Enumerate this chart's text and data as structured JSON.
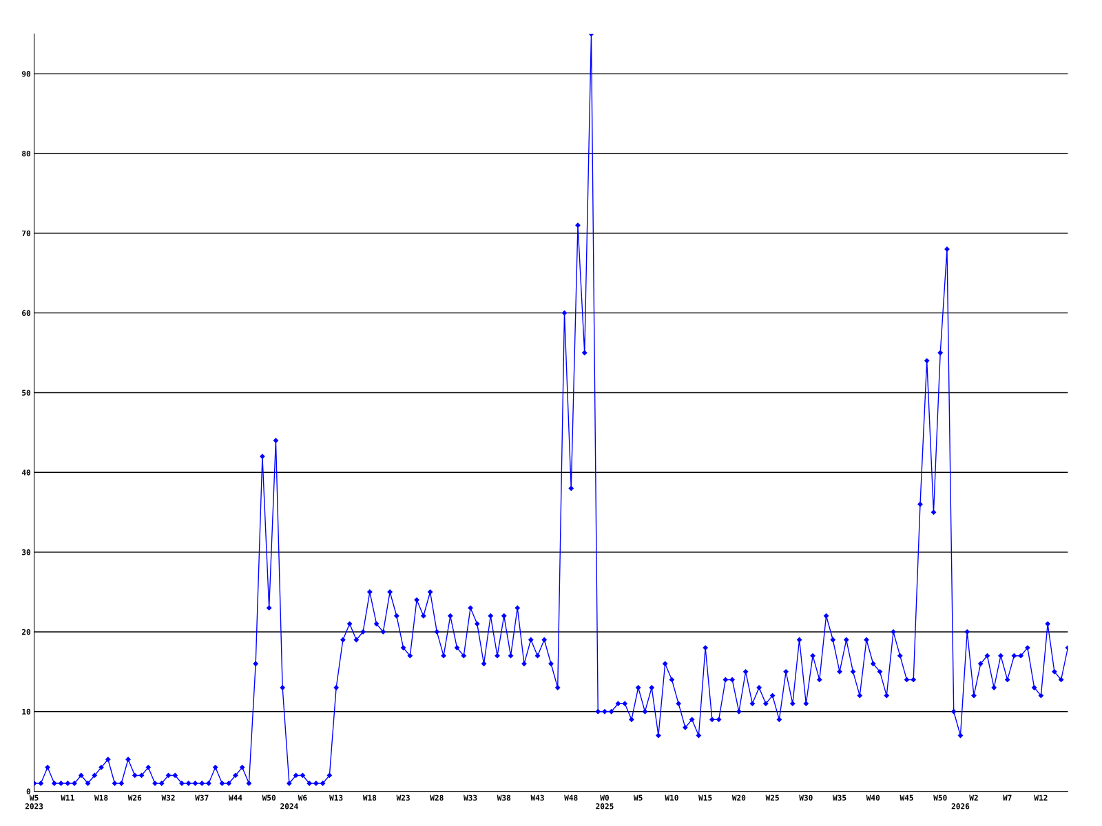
{
  "chart_data": {
    "type": "line",
    "categories": [
      "W5\n2023",
      null,
      null,
      null,
      null,
      "W11",
      null,
      null,
      null,
      null,
      "W18",
      null,
      null,
      null,
      null,
      "W26",
      null,
      null,
      null,
      null,
      "W32",
      null,
      null,
      null,
      null,
      "W37",
      null,
      null,
      null,
      null,
      "W44",
      null,
      null,
      null,
      null,
      "W50",
      null,
      null,
      "\n2024",
      null,
      "W6",
      null,
      null,
      null,
      null,
      "W13",
      null,
      null,
      null,
      null,
      "W18",
      null,
      null,
      null,
      null,
      "W23",
      null,
      null,
      null,
      null,
      "W28",
      null,
      null,
      null,
      null,
      "W33",
      null,
      null,
      null,
      null,
      "W38",
      null,
      null,
      null,
      null,
      "W43",
      null,
      null,
      null,
      null,
      "W48",
      null,
      null,
      null,
      null,
      "W0\n2025",
      null,
      null,
      null,
      null,
      "W5",
      null,
      null,
      null,
      null,
      "W10",
      null,
      null,
      null,
      null,
      "W15",
      null,
      null,
      null,
      null,
      "W20",
      null,
      null,
      null,
      null,
      "W25",
      null,
      null,
      null,
      null,
      "W30",
      null,
      null,
      null,
      null,
      "W35",
      null,
      null,
      null,
      null,
      "W40",
      null,
      null,
      null,
      null,
      "W45",
      null,
      null,
      null,
      null,
      "W50",
      null,
      null,
      "\n2026",
      null,
      "W2",
      null,
      null,
      null,
      null,
      "W7",
      null,
      null,
      null,
      null,
      "W12",
      null,
      null,
      null,
      null
    ],
    "series": [
      {
        "color": "#0000ff",
        "values": [
          1,
          1,
          3,
          1,
          1,
          1,
          1,
          2,
          1,
          2,
          3,
          4,
          1,
          1,
          4,
          2,
          2,
          3,
          1,
          1,
          2,
          2,
          1,
          1,
          1,
          1,
          1,
          3,
          1,
          1,
          2,
          3,
          1,
          16,
          42,
          23,
          44,
          13,
          1,
          2,
          2,
          1,
          1,
          1,
          2,
          13,
          19,
          21,
          19,
          20,
          25,
          21,
          20,
          25,
          22,
          18,
          17,
          24,
          22,
          25,
          20,
          17,
          22,
          18,
          17,
          23,
          21,
          16,
          22,
          17,
          22,
          17,
          23,
          16,
          19,
          17,
          19,
          16,
          13,
          60,
          38,
          71,
          55,
          95,
          10,
          10,
          10,
          11,
          11,
          9,
          13,
          10,
          13,
          7,
          16,
          14,
          11,
          8,
          9,
          7,
          18,
          9,
          9,
          14,
          14,
          10,
          15,
          11,
          13,
          11,
          12,
          9,
          15,
          11,
          19,
          11,
          17,
          14,
          22,
          19,
          15,
          19,
          15,
          12,
          19,
          16,
          15,
          12,
          20,
          17,
          14,
          14,
          36,
          54,
          35,
          55,
          68,
          10,
          7,
          20,
          12,
          16,
          17,
          13,
          17,
          14,
          17,
          17,
          18,
          13,
          12,
          21,
          15,
          14,
          18
        ]
      }
    ],
    "ylim": [
      0,
      95
    ],
    "yticks": [
      0,
      10,
      20,
      30,
      40,
      50,
      60,
      70,
      80,
      90
    ],
    "grid": "y",
    "marker": "diamond",
    "line_style": "solid"
  }
}
